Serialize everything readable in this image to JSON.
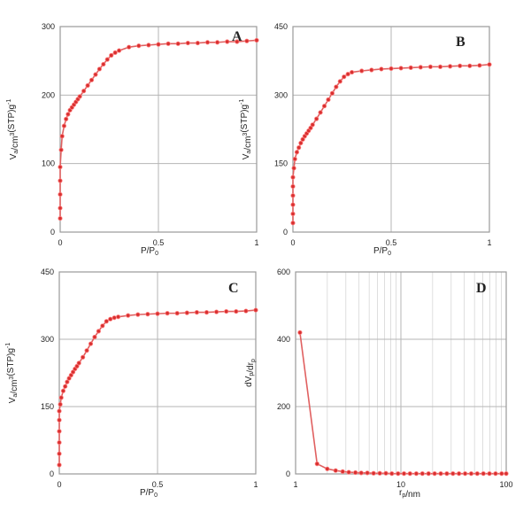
{
  "chart_data": [
    {
      "type": "line",
      "panel_label": "A",
      "xlabel": "P/P₀",
      "ylabel": "Va/cm³(STP)g⁻¹",
      "xlim": [
        0,
        1
      ],
      "ylim": [
        0,
        300
      ],
      "x_ticks": [
        "0",
        "0.5",
        "1"
      ],
      "y_ticks": [
        "0",
        "100",
        "200",
        "300"
      ],
      "grid": true,
      "series": [
        {
          "x": [
            0.0,
            0.0,
            0.0,
            0.0,
            0.0,
            0.005,
            0.01,
            0.02,
            0.03,
            0.04,
            0.05,
            0.06,
            0.07,
            0.08,
            0.09,
            0.1,
            0.12,
            0.14,
            0.16,
            0.18,
            0.2,
            0.22,
            0.24,
            0.26,
            0.28,
            0.3,
            0.35,
            0.4,
            0.45,
            0.5,
            0.55,
            0.6,
            0.65,
            0.7,
            0.75,
            0.8,
            0.85,
            0.9,
            0.95,
            1.0
          ],
          "y": [
            20,
            35,
            55,
            75,
            95,
            120,
            140,
            155,
            165,
            172,
            178,
            182,
            186,
            190,
            194,
            198,
            206,
            214,
            222,
            230,
            238,
            245,
            252,
            258,
            262,
            265,
            270,
            272,
            273,
            274,
            275,
            275,
            276,
            276,
            277,
            277,
            278,
            278,
            279,
            280
          ]
        }
      ]
    },
    {
      "type": "line",
      "panel_label": "B",
      "xlabel": "P/P₀",
      "ylabel": "Va/cm³(STP)g⁻¹",
      "xlim": [
        0,
        1
      ],
      "ylim": [
        0,
        450
      ],
      "x_ticks": [
        "0",
        "0.5",
        "1"
      ],
      "y_ticks": [
        "0",
        "150",
        "300",
        "450"
      ],
      "grid": true,
      "series": [
        {
          "x": [
            0.0,
            0.0,
            0.0,
            0.0,
            0.0,
            0.0,
            0.005,
            0.01,
            0.02,
            0.03,
            0.04,
            0.05,
            0.06,
            0.07,
            0.08,
            0.09,
            0.1,
            0.12,
            0.14,
            0.16,
            0.18,
            0.2,
            0.22,
            0.24,
            0.26,
            0.28,
            0.3,
            0.35,
            0.4,
            0.45,
            0.5,
            0.55,
            0.6,
            0.65,
            0.7,
            0.75,
            0.8,
            0.85,
            0.9,
            0.95,
            1.0
          ],
          "y": [
            20,
            40,
            60,
            80,
            100,
            120,
            140,
            160,
            175,
            185,
            195,
            203,
            210,
            216,
            222,
            228,
            235,
            248,
            262,
            276,
            290,
            304,
            318,
            330,
            340,
            346,
            350,
            353,
            355,
            357,
            358,
            359,
            360,
            361,
            362,
            362,
            363,
            364,
            364,
            365,
            367
          ]
        }
      ]
    },
    {
      "type": "line",
      "panel_label": "C",
      "xlabel": "P/P₀",
      "ylabel": "Va/cm³(STP)g⁻¹",
      "xlim": [
        0,
        1
      ],
      "ylim": [
        0,
        450
      ],
      "x_ticks": [
        "0",
        "0.5",
        "1"
      ],
      "y_ticks": [
        "0",
        "150",
        "300",
        "450"
      ],
      "grid": true,
      "series": [
        {
          "x": [
            0.0,
            0.0,
            0.0,
            0.0,
            0.0,
            0.0,
            0.005,
            0.01,
            0.02,
            0.03,
            0.04,
            0.05,
            0.06,
            0.07,
            0.08,
            0.09,
            0.1,
            0.12,
            0.14,
            0.16,
            0.18,
            0.2,
            0.22,
            0.24,
            0.26,
            0.28,
            0.3,
            0.35,
            0.4,
            0.45,
            0.5,
            0.55,
            0.6,
            0.65,
            0.7,
            0.75,
            0.8,
            0.85,
            0.9,
            0.95,
            1.0
          ],
          "y": [
            20,
            45,
            70,
            95,
            120,
            140,
            155,
            170,
            185,
            195,
            205,
            213,
            220,
            227,
            234,
            240,
            247,
            260,
            275,
            290,
            305,
            318,
            330,
            340,
            345,
            348,
            350,
            353,
            355,
            356,
            357,
            358,
            358,
            359,
            360,
            360,
            361,
            362,
            362,
            363,
            365
          ]
        }
      ]
    },
    {
      "type": "line",
      "panel_label": "D",
      "xlabel": "rₚ/nm",
      "ylabel": "dVₚ/drₚ",
      "xscale": "log",
      "xlim": [
        1,
        100
      ],
      "ylim": [
        0,
        600
      ],
      "x_ticks": [
        "1",
        "10",
        "100"
      ],
      "y_ticks": [
        "0",
        "200",
        "400",
        "600"
      ],
      "grid": true,
      "series": [
        {
          "x": [
            1.1,
            1.6,
            2.0,
            2.4,
            2.8,
            3.2,
            3.7,
            4.2,
            4.8,
            5.5,
            6.3,
            7.2,
            8.2,
            9.4,
            10.7,
            12.2,
            14,
            16,
            18.3,
            20.9,
            23.9,
            27.3,
            31.2,
            35.6,
            40.7,
            46.5,
            53.1,
            60.7,
            69.3,
            79.2,
            90.5,
            100
          ],
          "y": [
            420,
            30,
            15,
            10,
            7,
            5,
            4,
            3,
            3,
            2,
            2,
            2,
            1,
            1,
            1,
            1,
            1,
            1,
            1,
            1,
            1,
            1,
            1,
            1,
            1,
            1,
            1,
            1,
            1,
            1,
            1,
            1
          ]
        }
      ]
    }
  ]
}
